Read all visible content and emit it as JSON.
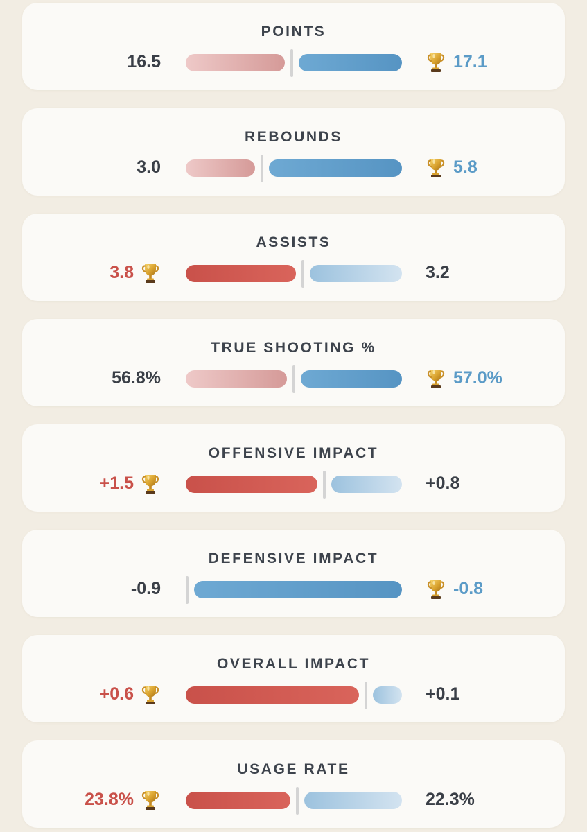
{
  "stats": [
    {
      "label": "POINTS",
      "left_value": "16.5",
      "right_value": "17.1",
      "winner": "right",
      "left_share": 0.4911
    },
    {
      "label": "REBOUNDS",
      "left_value": "3.0",
      "right_value": "5.8",
      "winner": "right",
      "left_share": 0.3409
    },
    {
      "label": "ASSISTS",
      "left_value": "3.8",
      "right_value": "3.2",
      "winner": "left",
      "left_share": 0.5429
    },
    {
      "label": "TRUE SHOOTING %",
      "left_value": "56.8%",
      "right_value": "57.0%",
      "winner": "right",
      "left_share": 0.4991
    },
    {
      "label": "OFFENSIVE IMPACT",
      "left_value": "+1.5",
      "right_value": "+0.8",
      "winner": "left",
      "left_share": 0.6522
    },
    {
      "label": "DEFENSIVE IMPACT",
      "left_value": "-0.9",
      "right_value": "-0.8",
      "winner": "right",
      "left_share": 0.0
    },
    {
      "label": "OVERALL IMPACT",
      "left_value": "+0.6",
      "right_value": "+0.1",
      "winner": "left",
      "left_share": 0.8571
    },
    {
      "label": "USAGE RATE",
      "left_value": "23.8%",
      "right_value": "22.3%",
      "winner": "left",
      "left_share": 0.5162
    }
  ],
  "icons": {
    "winner": "trophy-icon"
  },
  "colors": {
    "left_accent": "#c9514a",
    "right_accent": "#5b9bc7",
    "background": "#f2ede3",
    "card": "#fbfaf7"
  }
}
